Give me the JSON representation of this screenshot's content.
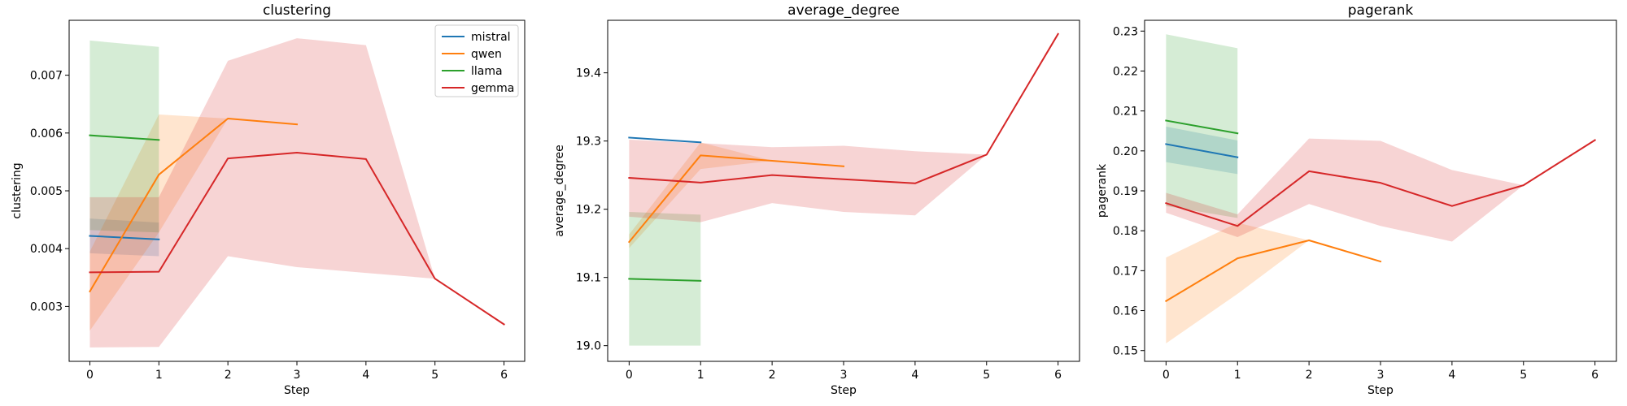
{
  "chart_data": [
    {
      "type": "line",
      "title": "clustering",
      "xlabel": "Step",
      "ylabel": "clustering",
      "xlim": [
        -0.3,
        6.3
      ],
      "ylim": [
        0.00205,
        0.00795
      ],
      "xticks": [
        0,
        1,
        2,
        3,
        4,
        5,
        6
      ],
      "yticks": [
        0.003,
        0.004,
        0.005,
        0.006,
        0.007
      ],
      "yticks_text": [
        "0.003",
        "0.004",
        "0.005",
        "0.006",
        "0.007"
      ],
      "legend": "top-right",
      "series": [
        {
          "name": "mistral",
          "color": "#1f77b4",
          "x": [
            0,
            1
          ],
          "y": [
            0.00422,
            0.00416
          ],
          "lower": [
            0.00392,
            0.00387
          ],
          "upper": [
            0.00452,
            0.00445
          ]
        },
        {
          "name": "qwen",
          "color": "#ff7f0e",
          "x": [
            0,
            1,
            2,
            3
          ],
          "y": [
            0.00326,
            0.00528,
            0.00625,
            0.00615
          ],
          "lower": [
            0.00258,
            0.00428,
            0.00625,
            0.00615
          ],
          "upper": [
            0.00395,
            0.00632,
            0.00625,
            0.00615
          ]
        },
        {
          "name": "llama",
          "color": "#2ca02c",
          "x": [
            0,
            1
          ],
          "y": [
            0.00596,
            0.00588
          ],
          "lower": [
            0.00432,
            0.00428
          ],
          "upper": [
            0.0076,
            0.00749
          ]
        },
        {
          "name": "gemma",
          "color": "#d62728",
          "x": [
            0,
            1,
            2,
            3,
            4,
            5,
            6
          ],
          "y": [
            0.00359,
            0.0036,
            0.00556,
            0.00566,
            0.00555,
            0.00348,
            0.00269
          ],
          "lower": [
            0.00229,
            0.0023,
            0.00387,
            0.00368,
            0.00358,
            0.00348,
            0.00269
          ],
          "upper": [
            0.00489,
            0.00489,
            0.00725,
            0.00764,
            0.00752,
            0.00348,
            0.00269
          ]
        }
      ]
    },
    {
      "type": "line",
      "title": "average_degree",
      "xlabel": "Step",
      "ylabel": "average_degree",
      "xlim": [
        -0.3,
        6.3
      ],
      "ylim": [
        18.977,
        19.477
      ],
      "xticks": [
        0,
        1,
        2,
        3,
        4,
        5,
        6
      ],
      "yticks": [
        19.0,
        19.1,
        19.2,
        19.3,
        19.4
      ],
      "yticks_text": [
        "19.0",
        "19.1",
        "19.2",
        "19.3",
        "19.4"
      ],
      "legend": "none",
      "series": [
        {
          "name": "mistral",
          "color": "#1f77b4",
          "x": [
            0,
            1
          ],
          "y": [
            19.305,
            19.298
          ],
          "lower": [
            19.305,
            19.298
          ],
          "upper": [
            19.305,
            19.298
          ]
        },
        {
          "name": "qwen",
          "color": "#ff7f0e",
          "x": [
            0,
            1,
            2,
            3
          ],
          "y": [
            19.152,
            19.279,
            19.271,
            19.263
          ],
          "lower": [
            19.143,
            19.259,
            19.271,
            19.263
          ],
          "upper": [
            19.163,
            19.298,
            19.271,
            19.263
          ]
        },
        {
          "name": "llama",
          "color": "#2ca02c",
          "x": [
            0,
            1
          ],
          "y": [
            19.098,
            19.095
          ],
          "lower": [
            19.0,
            19.0
          ],
          "upper": [
            19.196,
            19.192
          ]
        },
        {
          "name": "gemma",
          "color": "#d62728",
          "x": [
            0,
            1,
            2,
            3,
            4,
            5,
            6
          ],
          "y": [
            19.246,
            19.239,
            19.25,
            19.244,
            19.238,
            19.28,
            19.457
          ],
          "lower": [
            19.189,
            19.181,
            19.209,
            19.196,
            19.191,
            19.28,
            19.457
          ],
          "upper": [
            19.302,
            19.297,
            19.291,
            19.293,
            19.285,
            19.28,
            19.457
          ]
        }
      ]
    },
    {
      "type": "line",
      "title": "pagerank",
      "xlabel": "Step",
      "ylabel": "pagerank",
      "xlim": [
        -0.3,
        6.3
      ],
      "ylim": [
        0.1473,
        0.2327
      ],
      "xticks": [
        0,
        1,
        2,
        3,
        4,
        5,
        6
      ],
      "yticks": [
        0.15,
        0.16,
        0.17,
        0.18,
        0.19,
        0.2,
        0.21,
        0.22,
        0.23
      ],
      "yticks_text": [
        "0.15",
        "0.16",
        "0.17",
        "0.18",
        "0.19",
        "0.20",
        "0.21",
        "0.22",
        "0.23"
      ],
      "legend": "none",
      "series": [
        {
          "name": "mistral",
          "color": "#1f77b4",
          "x": [
            0,
            1
          ],
          "y": [
            0.2017,
            0.1984
          ],
          "lower": [
            0.1972,
            0.1942
          ],
          "upper": [
            0.2061,
            0.2026
          ]
        },
        {
          "name": "qwen",
          "color": "#ff7f0e",
          "x": [
            0,
            1,
            2,
            3
          ],
          "y": [
            0.1624,
            0.1731,
            0.1776,
            0.1723
          ],
          "lower": [
            0.1518,
            0.1642,
            0.1776,
            0.1723
          ],
          "upper": [
            0.1733,
            0.182,
            0.1776,
            0.1723
          ]
        },
        {
          "name": "llama",
          "color": "#2ca02c",
          "x": [
            0,
            1
          ],
          "y": [
            0.2076,
            0.2044
          ],
          "lower": [
            0.1862,
            0.1832
          ],
          "upper": [
            0.2292,
            0.2257
          ]
        },
        {
          "name": "gemma",
          "color": "#d62728",
          "x": [
            0,
            1,
            2,
            3,
            4,
            5,
            6
          ],
          "y": [
            0.1869,
            0.1812,
            0.1949,
            0.192,
            0.1862,
            0.1914,
            0.2027
          ],
          "lower": [
            0.1845,
            0.1784,
            0.1867,
            0.1812,
            0.1773,
            0.1914,
            0.2027
          ],
          "upper": [
            0.1895,
            0.1841,
            0.2031,
            0.2025,
            0.1952,
            0.1914,
            0.2027
          ]
        }
      ]
    }
  ]
}
